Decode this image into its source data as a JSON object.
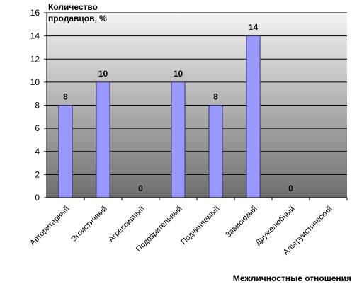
{
  "chart_data": {
    "type": "bar",
    "ylabel_line1": "Количество",
    "ylabel_line2": "продавцов, %",
    "xlabel": "Межличностные отношения",
    "categories": [
      "Авторитарный",
      "Эгоистичный",
      "Агрессивный",
      "Подозрительный",
      "Подчиняемый",
      "Зависимый",
      "Дружелюбный",
      "Альтруистический"
    ],
    "values": [
      8,
      10,
      0,
      10,
      8,
      14,
      0,
      null
    ],
    "data_labels": [
      "8",
      "10",
      "0",
      "10",
      "8",
      "14",
      "0",
      ""
    ],
    "ylim": [
      0,
      16
    ],
    "yticks": [
      0,
      2,
      4,
      6,
      8,
      10,
      12,
      14,
      16
    ],
    "grid": true,
    "legend": "none",
    "colors": {
      "bar_fill": "#9999ff",
      "bar_stroke": "#333366",
      "plot_top": "#f4f4f4",
      "plot_bottom": "#6e6e6e",
      "grid": "#000000"
    }
  }
}
